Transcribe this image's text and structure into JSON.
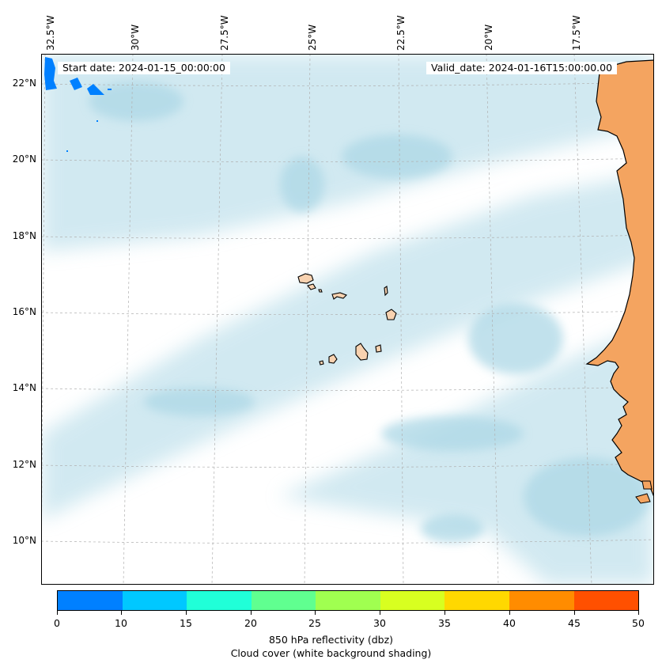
{
  "header": {
    "start_date": "Start date: 2024-01-15_00:00:00",
    "valid_date": "Valid_date: 2024-01-16T15:00:00.00"
  },
  "map": {
    "longitude_labels": [
      "32.5°W",
      "30°W",
      "27.5°W",
      "25°W",
      "22.5°W",
      "20°W",
      "17.5°W"
    ],
    "latitude_labels": [
      "22°N",
      "20°N",
      "18°N",
      "16°N",
      "14°N",
      "12°N",
      "10°N"
    ],
    "land_color": "#f4a460",
    "island_color": "#f8d2b0",
    "cloud_color": "#add8e6",
    "gridlines": true
  },
  "colorbar": {
    "ticks": [
      "0",
      "10",
      "15",
      "20",
      "25",
      "30",
      "35",
      "40",
      "45",
      "50"
    ],
    "colors": [
      "#0080ff",
      "#00c8ff",
      "#20ffd8",
      "#60ff90",
      "#a0ff50",
      "#d8ff20",
      "#ffd800",
      "#ff8c00",
      "#ff5000"
    ],
    "label_line1": "850 hPa reflectivity (dbz)",
    "label_line2": "Cloud cover (white background shading)"
  }
}
